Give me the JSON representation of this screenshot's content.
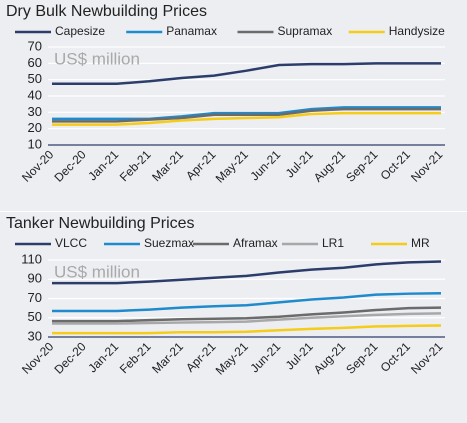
{
  "chart_data": [
    {
      "type": "line",
      "title": "Dry Bulk Newbuilding Prices",
      "annotation": "US$ million",
      "categories": [
        "Nov-20",
        "Dec-20",
        "Jan-21",
        "Feb-21",
        "Mar-21",
        "Apr-21",
        "May-21",
        "Jun-21",
        "Jul-21",
        "Aug-21",
        "Sep-21",
        "Oct-21",
        "Nov-21"
      ],
      "series": [
        {
          "name": "Capesize",
          "color": "#2c3d6b",
          "values": [
            47.5,
            47.5,
            47.5,
            49,
            51,
            52.5,
            55.5,
            59,
            59.5,
            59.5,
            60,
            60,
            60
          ]
        },
        {
          "name": "Panamax",
          "color": "#1f8bcc",
          "values": [
            26,
            26,
            26,
            26,
            27.5,
            29.5,
            29.5,
            29.5,
            32,
            33,
            33,
            33,
            33
          ]
        },
        {
          "name": "Supramax",
          "color": "#6b6b6b",
          "values": [
            24.5,
            24.5,
            24.5,
            25.5,
            26.5,
            28.5,
            28.5,
            28.5,
            31,
            32,
            32,
            32,
            32
          ]
        },
        {
          "name": "Handysize",
          "color": "#f5cc17",
          "values": [
            22.5,
            22.5,
            22.5,
            23.5,
            25,
            26,
            26.5,
            27,
            29,
            29.5,
            29.5,
            29.5,
            29.5
          ]
        }
      ],
      "ylim": [
        10,
        70
      ],
      "yticks": [
        10,
        20,
        30,
        40,
        50,
        60,
        70
      ],
      "grid": true,
      "legend": "top"
    },
    {
      "type": "line",
      "title": "Tanker Newbuilding Prices",
      "annotation": "US$ million",
      "categories": [
        "Nov-20",
        "Dec-20",
        "Jan-21",
        "Feb-21",
        "Mar-21",
        "Apr-21",
        "May-21",
        "Jun-21",
        "Jul-21",
        "Aug-21",
        "Sep-21",
        "Oct-21",
        "Nov-21"
      ],
      "series": [
        {
          "name": "VLCC",
          "color": "#2c3d6b",
          "values": [
            86,
            86,
            86,
            87.5,
            89.5,
            91.5,
            93.5,
            97,
            100,
            102,
            105.5,
            107.5,
            108.5
          ]
        },
        {
          "name": "Suezmax",
          "color": "#1f8bcc",
          "values": [
            57,
            57,
            57,
            58.5,
            60.5,
            62,
            63,
            66,
            69,
            71,
            74,
            75,
            75.5
          ]
        },
        {
          "name": "Aframax",
          "color": "#6b6b6b",
          "values": [
            46.5,
            46.5,
            46.5,
            47.5,
            48.5,
            49,
            49.5,
            51,
            53.5,
            55.5,
            58,
            60,
            60.5
          ]
        },
        {
          "name": "LR1",
          "color": "#a8a8a8",
          "values": [
            44,
            44,
            44,
            44.5,
            45,
            45.5,
            46,
            48,
            50,
            51.5,
            53,
            54,
            54.5
          ]
        },
        {
          "name": "MR",
          "color": "#f5cc17",
          "values": [
            34,
            34,
            34,
            34,
            35,
            35,
            35.5,
            37,
            38.5,
            39.5,
            41,
            41.5,
            42
          ]
        }
      ],
      "ylim": [
        30,
        110
      ],
      "yticks": [
        30,
        50,
        70,
        90,
        110
      ],
      "grid": true,
      "legend": "top"
    }
  ]
}
